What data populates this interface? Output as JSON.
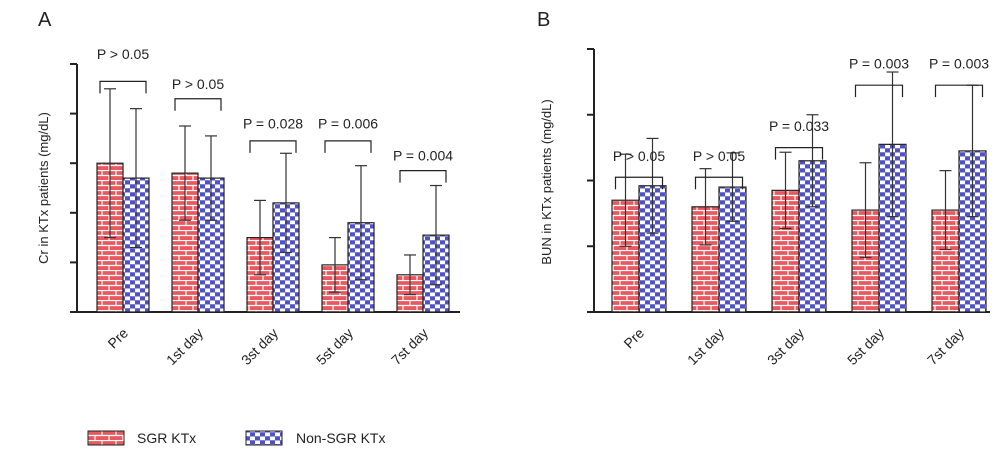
{
  "colors": {
    "sgr": "#e8595f",
    "non_sgr": "#4f52c4",
    "axis": "#222222",
    "error": "#333333"
  },
  "legend": [
    {
      "label": "SGR KTx",
      "pattern": "brick",
      "color": "#e8595f"
    },
    {
      "label": "Non-SGR KTx",
      "pattern": "check",
      "color": "#4f52c4"
    }
  ],
  "chart_data": [
    {
      "panel_label": "A",
      "type": "bar",
      "title": "",
      "xlabel": "",
      "ylabel": "Cr in KTx patients (mg/dL)",
      "categories": [
        "Pre",
        "1st day",
        "3st day",
        "5st day",
        "7st day"
      ],
      "ylim": [
        0,
        5
      ],
      "yticks": [
        0,
        1,
        2,
        3,
        4,
        5
      ],
      "ytick_labels_shown": false,
      "series": [
        {
          "name": "SGR KTx",
          "values": [
            3.0,
            2.8,
            1.5,
            0.95,
            0.75
          ],
          "error": [
            1.5,
            0.95,
            0.75,
            0.55,
            0.4
          ]
        },
        {
          "name": "Non-SGR KTx",
          "values": [
            2.7,
            2.7,
            2.2,
            1.8,
            1.55
          ],
          "error": [
            1.4,
            0.85,
            1.0,
            1.15,
            1.0
          ]
        }
      ],
      "annotations": [
        {
          "text": "P > 0.05",
          "category": "Pre",
          "bracket_y": 4.65,
          "label_y": 5.1
        },
        {
          "text": "P > 0.05",
          "category": "1st day",
          "bracket_y": 4.3,
          "label_y": 4.5
        },
        {
          "text": "P = 0.028",
          "category": "3st day",
          "bracket_y": 3.45,
          "label_y": 3.7
        },
        {
          "text": "P = 0.006",
          "category": "5st day",
          "bracket_y": 3.45,
          "label_y": 3.7
        },
        {
          "text": "P = 0.004",
          "category": "7st day",
          "bracket_y": 2.85,
          "label_y": 3.05
        }
      ],
      "grid": false,
      "legend": "bottom"
    },
    {
      "panel_label": "B",
      "type": "bar",
      "title": "",
      "xlabel": "",
      "ylabel": "BUN in KTx patients (mg/dL)",
      "categories": [
        "Pre",
        "1st day",
        "3st day",
        "5st day",
        "7st day"
      ],
      "ylim": [
        0,
        4
      ],
      "yticks": [
        0,
        1,
        2,
        3,
        4
      ],
      "ytick_labels_shown": false,
      "series": [
        {
          "name": "SGR KTx",
          "values": [
            1.7,
            1.6,
            1.85,
            1.55,
            1.55
          ],
          "error": [
            0.7,
            0.58,
            0.58,
            0.72,
            0.6
          ]
        },
        {
          "name": "Non-SGR KTx",
          "values": [
            1.92,
            1.9,
            2.3,
            2.55,
            2.45
          ],
          "error": [
            0.72,
            0.52,
            0.7,
            1.1,
            1.0
          ]
        }
      ],
      "annotations": [
        {
          "text": "P > 0.05",
          "category": "Pre",
          "bracket_y": 2.05,
          "label_y": 2.3
        },
        {
          "text": "P > 0.05",
          "category": "1st day",
          "bracket_y": 2.05,
          "label_y": 2.3
        },
        {
          "text": "P = 0.033",
          "category": "3st day",
          "bracket_y": 2.5,
          "label_y": 2.75
        },
        {
          "text": "P = 0.003",
          "category": "5st day",
          "bracket_y": 3.45,
          "label_y": 3.7
        },
        {
          "text": "P = 0.003",
          "category": "7st day",
          "bracket_y": 3.45,
          "label_y": 3.7
        }
      ],
      "grid": false,
      "legend": "bottom"
    }
  ]
}
